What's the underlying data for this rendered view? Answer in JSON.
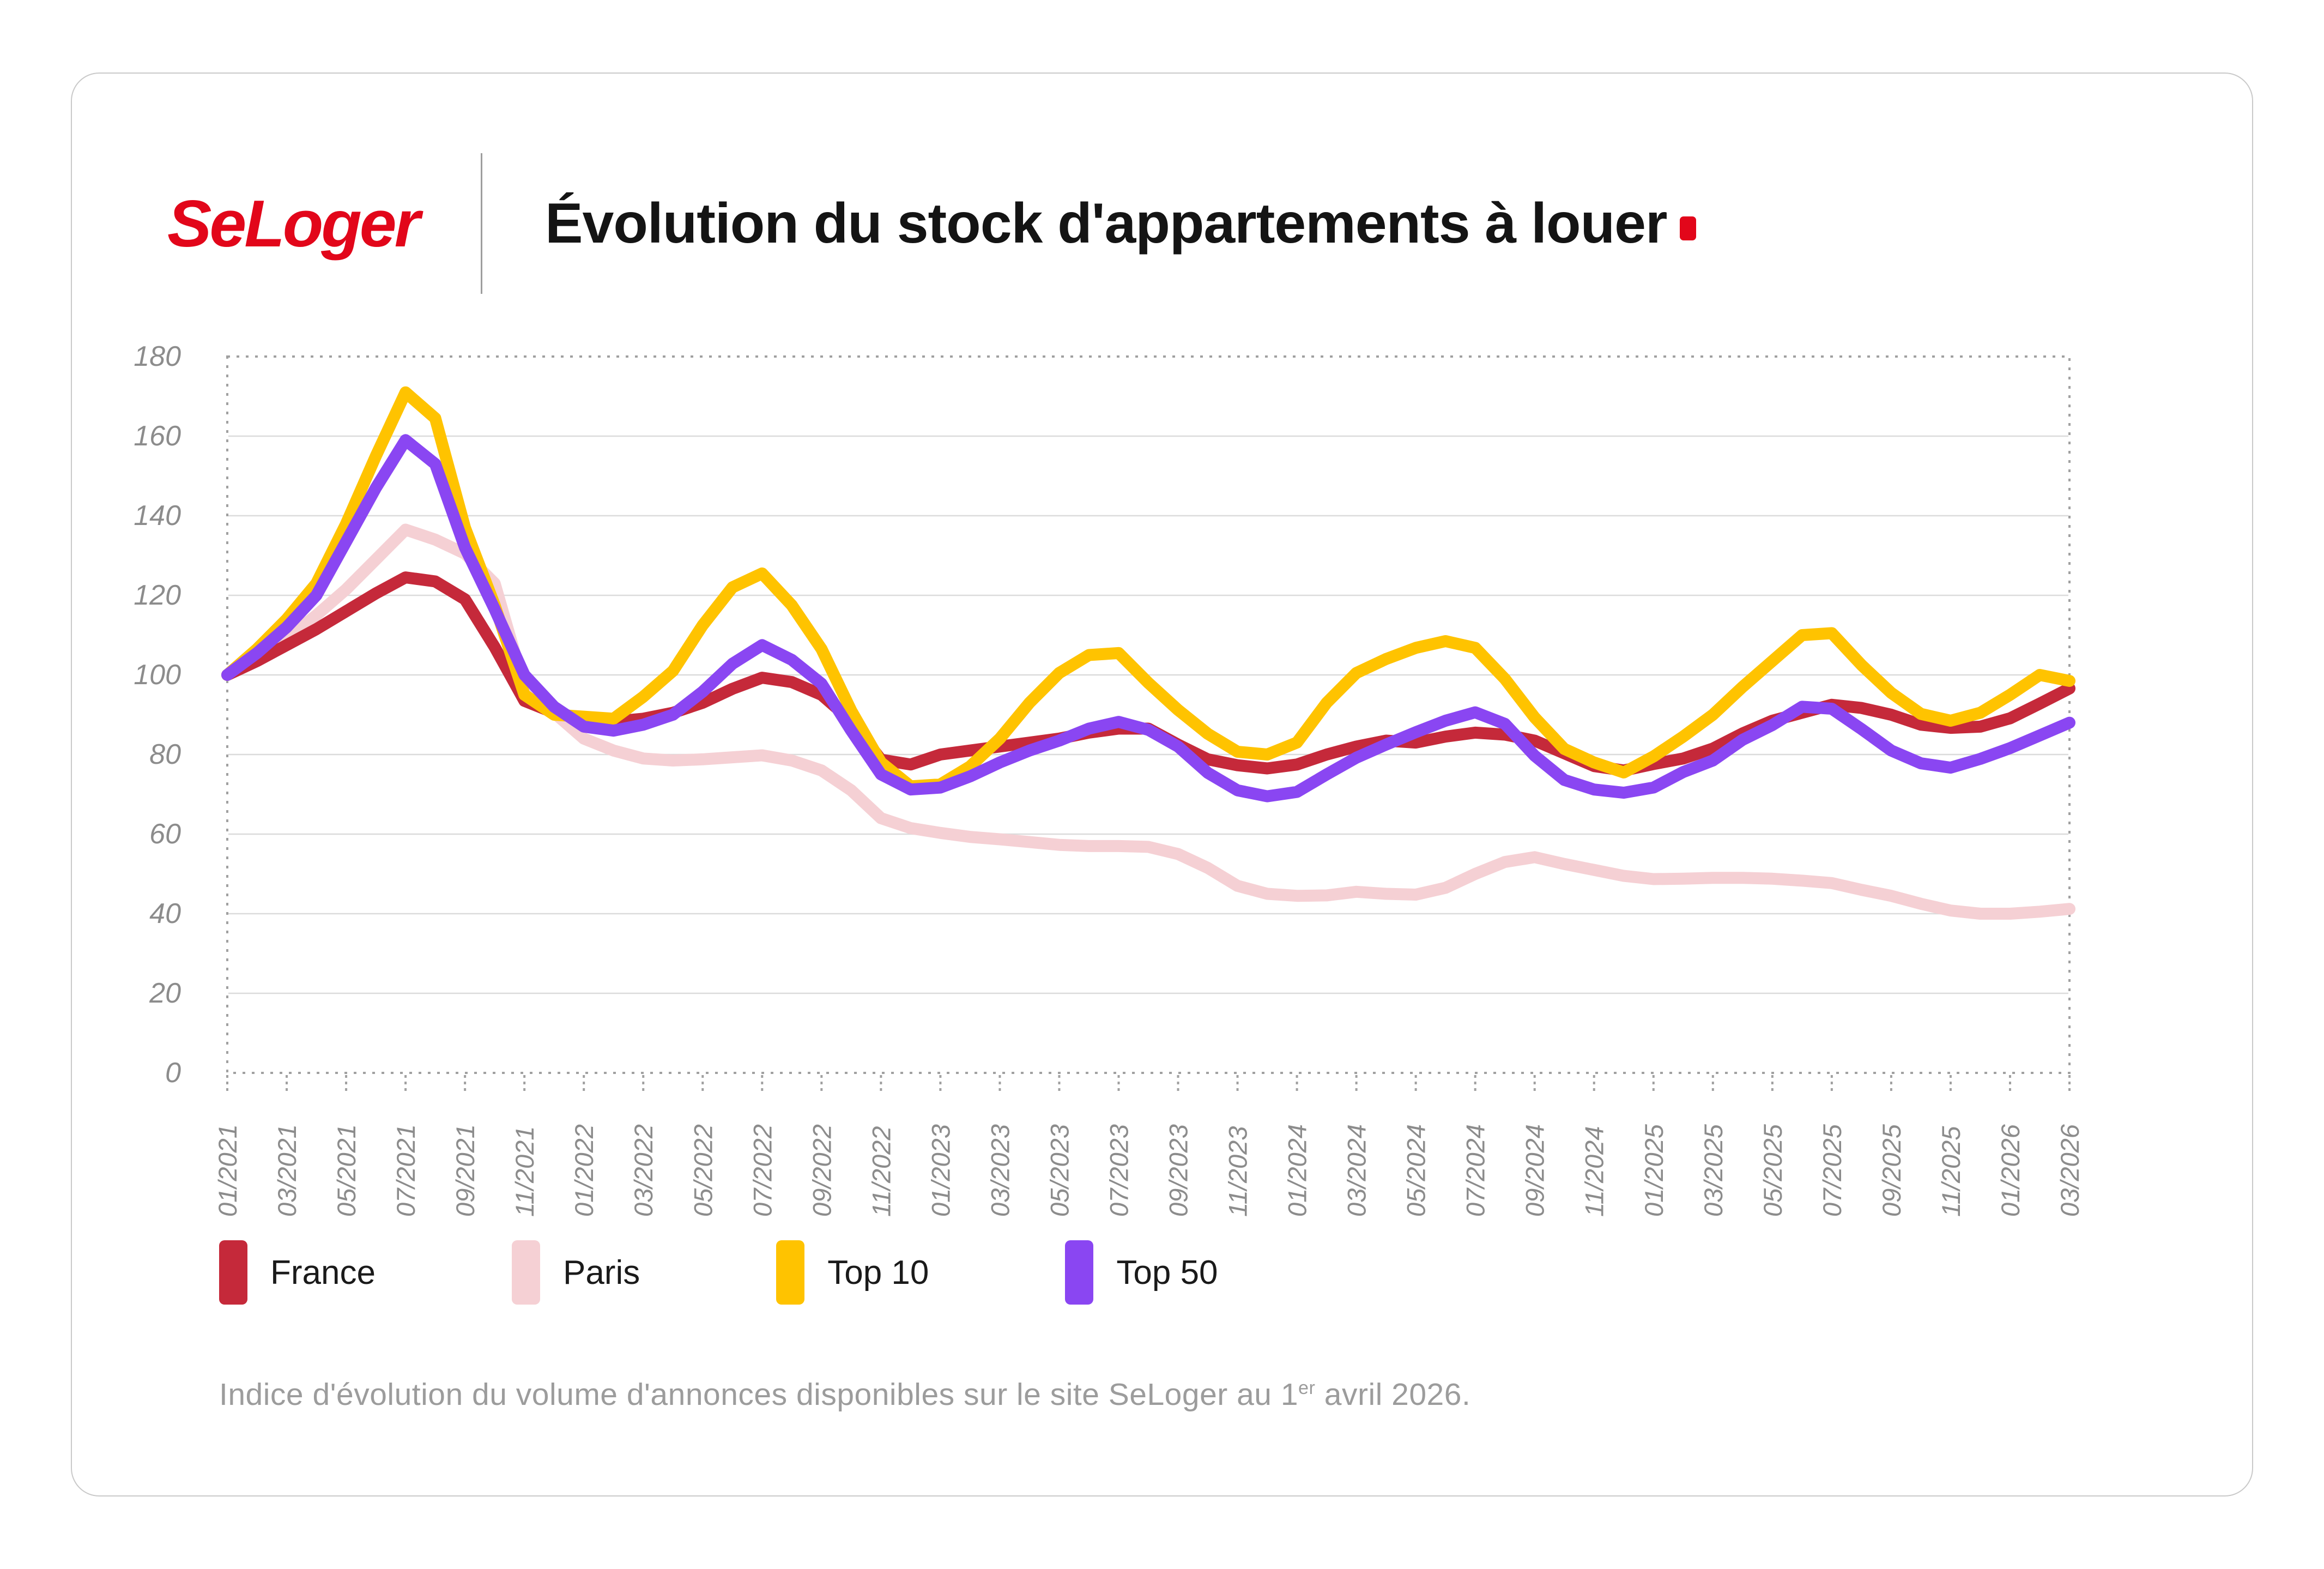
{
  "header": {
    "logo_text": "SeLoger",
    "title": "Évolution du stock d'appartements à louer"
  },
  "footer": {
    "text_main": "Indice d'évolution du volume d'annonces disponibles sur le site SeLoger au 1",
    "text_sup": "er",
    "text_end": " avril 2026."
  },
  "chart_data": {
    "type": "line",
    "title": "Évolution du stock d'appartements à louer",
    "xlabel": "",
    "ylabel": "",
    "ylim": [
      0,
      180
    ],
    "y_ticks": [
      0,
      20,
      40,
      60,
      80,
      100,
      120,
      140,
      160,
      180
    ],
    "grid": "horizontal",
    "plot_border": "dashed",
    "legend_position": "bottom-left",
    "months_total": 63,
    "x_start": "01/2021",
    "x_end": "03/2026",
    "x_labels": [
      "01/2021",
      "03/2021",
      "05/2021",
      "07/2021",
      "09/2021",
      "11/2021",
      "01/2022",
      "03/2022",
      "05/2022",
      "07/2022",
      "09/2022",
      "11/2022",
      "01/2023",
      "03/2023",
      "05/2023",
      "07/2023",
      "09/2023",
      "11/2023",
      "01/2024",
      "03/2024",
      "05/2024",
      "07/2024",
      "09/2024",
      "11/2024",
      "01/2025",
      "03/2025",
      "05/2025",
      "07/2025",
      "09/2025",
      "11/2025",
      "01/2026",
      "03/2026"
    ],
    "draw_order": [
      "Paris",
      "France",
      "Top 10",
      "Top 50"
    ],
    "colors": {
      "grid": "#DBDBDB",
      "border": "#A0A0A0",
      "tick_text": "#8C8C8C",
      "accent_red": "#E2061A"
    },
    "series": [
      {
        "name": "France",
        "color": "#C5293A",
        "values": [
          100,
          103.5,
          107.5,
          111.5,
          116,
          120.5,
          124.5,
          123.5,
          119,
          107,
          93.5,
          90.5,
          89,
          88.3,
          89,
          90.5,
          93,
          96.5,
          99.3,
          98.2,
          95,
          88.5,
          78.7,
          77.5,
          80,
          81,
          82,
          83,
          84,
          85.5,
          86.5,
          86.5,
          82.5,
          78.8,
          77.3,
          76.5,
          77.5,
          80,
          82,
          83.5,
          83,
          84.5,
          85.5,
          85,
          83.5,
          80.3,
          77.1,
          76,
          77.6,
          79,
          81.5,
          85.3,
          88.5,
          90.5,
          92.5,
          91.7,
          90,
          87.5,
          86.7,
          87,
          89.1,
          92.8,
          96.6
        ]
      },
      {
        "name": "Paris",
        "color": "#F5D0D4",
        "values": [
          100,
          104,
          109,
          115,
          121.5,
          129,
          136.5,
          134,
          130.5,
          123,
          97,
          90.5,
          84,
          81,
          79,
          78.5,
          78.8,
          79.3,
          79.8,
          78.5,
          76,
          71,
          64,
          61.5,
          60.3,
          59.3,
          58.7,
          58,
          57.3,
          57,
          57,
          56.8,
          55,
          51.5,
          47,
          45,
          44.5,
          44.6,
          45.5,
          45,
          44.8,
          46.5,
          50,
          53,
          54.2,
          52.5,
          51,
          49.5,
          48.7,
          48.8,
          49,
          49,
          48.8,
          48.3,
          47.7,
          46,
          44.5,
          42.5,
          40.8,
          40,
          40,
          40.5,
          41.2
        ]
      },
      {
        "name": "Top 10",
        "color": "#FFC300",
        "values": [
          100,
          106.5,
          114,
          123,
          138,
          155,
          171,
          164.5,
          137,
          117.5,
          95,
          90,
          89.5,
          89,
          94.5,
          101,
          112.5,
          122,
          125.5,
          117.5,
          106.5,
          91,
          78,
          72,
          72.5,
          77,
          84,
          93,
          100.5,
          105,
          105.5,
          98,
          91.2,
          85.2,
          80.7,
          80,
          83,
          93,
          100.5,
          104,
          106.8,
          108.5,
          106.8,
          99,
          89.3,
          81.4,
          78,
          75.5,
          79.5,
          84.5,
          90,
          97,
          103.5,
          110,
          110.5,
          102.5,
          95.5,
          90.2,
          88.5,
          90.5,
          95,
          100,
          98.5
        ]
      },
      {
        "name": "Top 50",
        "color": "#8A46F2",
        "values": [
          100,
          105.5,
          112,
          120,
          133.5,
          147,
          159,
          153,
          132,
          116.5,
          100,
          92,
          87,
          86,
          87.5,
          90,
          95.8,
          102.8,
          107.5,
          103.8,
          97.8,
          86,
          75,
          71.2,
          71.7,
          74.5,
          78,
          81,
          83.5,
          86.5,
          88.2,
          86.2,
          82,
          75.4,
          71,
          69.5,
          70.6,
          75,
          79.2,
          82.5,
          85.6,
          88.5,
          90.6,
          87.7,
          79.7,
          73.6,
          71.2,
          70.4,
          71.7,
          75.6,
          78.5,
          83.7,
          87.4,
          92,
          91.5,
          86.4,
          81,
          77.8,
          76.7,
          78.9,
          81.6,
          84.8,
          88
        ]
      }
    ]
  }
}
